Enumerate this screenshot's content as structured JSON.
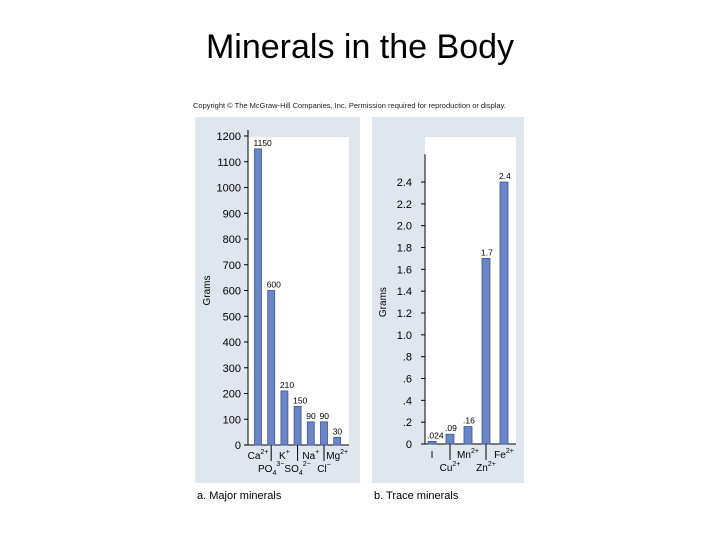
{
  "slide": {
    "title": "Minerals in the Body",
    "copyright": "Copyright © The McGraw-Hill Companies, Inc. Permission required for reproduction or display."
  },
  "colors": {
    "bar": "#6b86c6",
    "bar_edge": "#3c5597",
    "panel_bg": "#dfe6ee",
    "plot_bg": "#ffffff"
  },
  "chart_data": [
    {
      "type": "bar",
      "caption": "a. Major minerals",
      "ylabel": "Grams",
      "ylim": [
        0,
        1200
      ],
      "yticks": [
        {
          "value": 0,
          "label": "0"
        },
        {
          "value": 100,
          "label": "100"
        },
        {
          "value": 200,
          "label": "200"
        },
        {
          "value": 300,
          "label": "300"
        },
        {
          "value": 400,
          "label": "400"
        },
        {
          "value": 500,
          "label": "500"
        },
        {
          "value": 600,
          "label": "600"
        },
        {
          "value": 700,
          "label": "700"
        },
        {
          "value": 800,
          "label": "800"
        },
        {
          "value": 900,
          "label": "900"
        },
        {
          "value": 1000,
          "label": "1000"
        },
        {
          "value": 1100,
          "label": "1100"
        },
        {
          "value": 1200,
          "label": "1200"
        }
      ],
      "bars": [
        {
          "element": "Ca",
          "charge": "2+",
          "value": 1150,
          "label": "1150",
          "row": 1
        },
        {
          "element": "PO",
          "sub": "4",
          "charge": "3−",
          "value": 600,
          "label": "600",
          "row": 2
        },
        {
          "element": "K",
          "charge": "+",
          "value": 210,
          "label": "210",
          "row": 1
        },
        {
          "element": "SO",
          "sub": "4",
          "charge": "2−",
          "value": 150,
          "label": "150",
          "row": 2
        },
        {
          "element": "Na",
          "charge": "+",
          "value": 90,
          "label": "90",
          "row": 1
        },
        {
          "element": "Cl",
          "charge": "−",
          "value": 90,
          "label": "90",
          "row": 2
        },
        {
          "element": "Mg",
          "charge": "2+",
          "value": 30,
          "label": "30",
          "row": 1
        }
      ]
    },
    {
      "type": "bar",
      "caption": "b. Trace minerals",
      "ylabel": "Grams",
      "ylim": [
        0,
        2.6
      ],
      "yticks": [
        {
          "value": 0,
          "label": "0"
        },
        {
          "value": 0.2,
          "label": ".2"
        },
        {
          "value": 0.4,
          "label": ".4"
        },
        {
          "value": 0.6,
          "label": ".6"
        },
        {
          "value": 0.8,
          "label": ".8"
        },
        {
          "value": 1.0,
          "label": "1.0"
        },
        {
          "value": 1.2,
          "label": "1.2"
        },
        {
          "value": 1.4,
          "label": "1.4"
        },
        {
          "value": 1.6,
          "label": "1.6"
        },
        {
          "value": 1.8,
          "label": "1.8"
        },
        {
          "value": 2.0,
          "label": "2.0"
        },
        {
          "value": 2.2,
          "label": "2.2"
        },
        {
          "value": 2.4,
          "label": "2.4"
        }
      ],
      "bars": [
        {
          "element": "I",
          "charge": "",
          "value": 0.024,
          "label": ".024",
          "row": 1
        },
        {
          "element": "Cu",
          "charge": "2+",
          "value": 0.09,
          "label": ".09",
          "row": 2
        },
        {
          "element": "Mn",
          "charge": "2+",
          "value": 0.16,
          "label": ".16",
          "row": 1
        },
        {
          "element": "Zn",
          "charge": "2+",
          "value": 1.7,
          "label": "1.7",
          "row": 2
        },
        {
          "element": "Fe",
          "charge": "2+",
          "value": 2.4,
          "label": "2.4",
          "row": 1
        }
      ]
    }
  ]
}
